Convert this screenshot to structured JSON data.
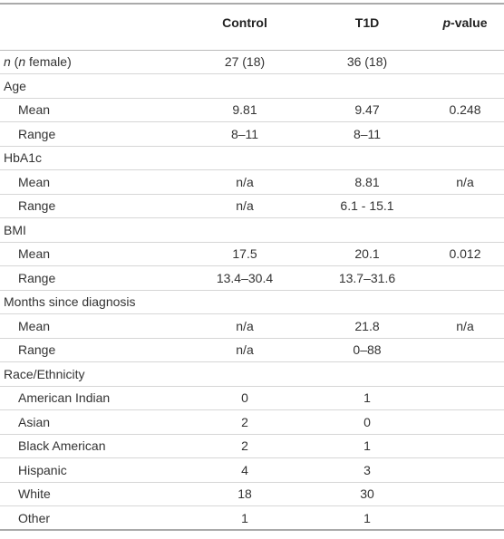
{
  "table": {
    "header": {
      "control": "Control",
      "t1d": "T1D",
      "p_value": [
        {
          "text": "p",
          "italic": true
        },
        {
          "text": "-value"
        }
      ]
    },
    "rows": [
      {
        "label": [
          {
            "text": "n",
            "italic": true
          },
          {
            "text": " ("
          },
          {
            "text": "n",
            "italic": true
          },
          {
            "text": " female)"
          }
        ],
        "control": "27 (18)",
        "t1d": "36 (18)"
      },
      {
        "label": "Age"
      },
      {
        "label": "Mean",
        "indent": true,
        "control": "9.81",
        "t1d": "9.47",
        "p": "0.248"
      },
      {
        "label": "Range",
        "indent": true,
        "control": "8–11",
        "t1d": "8–11"
      },
      {
        "label": "HbA1c"
      },
      {
        "label": "Mean",
        "indent": true,
        "control": "n/a",
        "t1d": "8.81",
        "p": "n/a"
      },
      {
        "label": "Range",
        "indent": true,
        "control": "n/a",
        "t1d": "6.1 - 15.1"
      },
      {
        "label": "BMI"
      },
      {
        "label": "Mean",
        "indent": true,
        "control": "17.5",
        "t1d": "20.1",
        "p": "0.012"
      },
      {
        "label": "Range",
        "indent": true,
        "control": "13.4–30.4",
        "t1d": "13.7–31.6"
      },
      {
        "label": "Months since diagnosis"
      },
      {
        "label": "Mean",
        "indent": true,
        "control": "n/a",
        "t1d": "21.8",
        "p": "n/a"
      },
      {
        "label": "Range",
        "indent": true,
        "control": "n/a",
        "t1d": "0–88"
      },
      {
        "label": "Race/Ethnicity"
      },
      {
        "label": "American Indian",
        "indent": true,
        "control": "0",
        "t1d": "1"
      },
      {
        "label": "Asian",
        "indent": true,
        "control": "2",
        "t1d": "0"
      },
      {
        "label": "Black American",
        "indent": true,
        "control": "2",
        "t1d": "1"
      },
      {
        "label": "Hispanic",
        "indent": true,
        "control": "4",
        "t1d": "3"
      },
      {
        "label": "White",
        "indent": true,
        "control": "18",
        "t1d": "30"
      },
      {
        "label": "Other",
        "indent": true,
        "control": "1",
        "t1d": "1"
      }
    ]
  }
}
